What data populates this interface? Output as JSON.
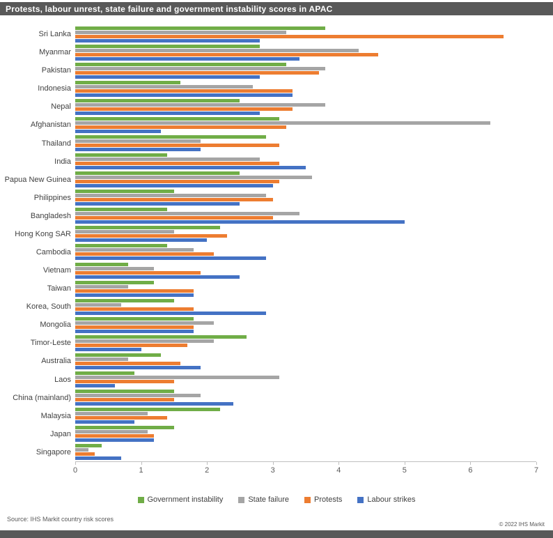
{
  "header": {
    "title": "Protests, labour unrest, state failure and government instability scores in APAC"
  },
  "chart_data": {
    "type": "bar",
    "orientation": "horizontal",
    "title": "Protests, labour unrest, state failure and government instability scores in APAC",
    "xlabel": "",
    "ylabel": "",
    "xlim": [
      0,
      7
    ],
    "xticks": [
      0,
      1,
      2,
      3,
      4,
      5,
      6,
      7
    ],
    "grid": false,
    "legend_position": "bottom",
    "categories": [
      "Sri Lanka",
      "Myanmar",
      "Pakistan",
      "Indonesia",
      "Nepal",
      "Afghanistan",
      "Thailand",
      "India",
      "Papua New Guinea",
      "Philippines",
      "Bangladesh",
      "Hong Kong SAR",
      "Cambodia",
      "Vietnam",
      "Taiwan",
      "Korea, South",
      "Mongolia",
      "Timor-Leste",
      "Australia",
      "Laos",
      "China (mainland)",
      "Malaysia",
      "Japan",
      "Singapore"
    ],
    "series": [
      {
        "key": "government-instability",
        "name": "Government instability",
        "color": "#70AD47",
        "values": [
          3.8,
          2.8,
          3.2,
          1.6,
          2.5,
          3.1,
          2.9,
          1.4,
          2.5,
          1.5,
          1.4,
          2.2,
          1.4,
          0.8,
          1.2,
          1.5,
          1.8,
          2.6,
          1.3,
          0.9,
          1.5,
          2.2,
          1.5,
          0.4
        ]
      },
      {
        "key": "state-failure",
        "name": "State failure",
        "color": "#A5A5A5",
        "values": [
          3.2,
          4.3,
          3.8,
          2.7,
          3.8,
          6.3,
          1.9,
          2.8,
          3.6,
          2.9,
          3.4,
          1.5,
          1.8,
          1.2,
          0.8,
          0.7,
          2.1,
          2.1,
          0.8,
          3.1,
          1.9,
          1.1,
          1.1,
          0.2
        ]
      },
      {
        "key": "protests",
        "name": "Protests",
        "color": "#ED7D31",
        "values": [
          6.5,
          4.6,
          3.7,
          3.3,
          3.3,
          3.2,
          3.1,
          3.1,
          3.1,
          3.0,
          3.0,
          2.3,
          2.1,
          1.9,
          1.8,
          1.8,
          1.8,
          1.7,
          1.6,
          1.5,
          1.5,
          1.4,
          1.2,
          0.3
        ]
      },
      {
        "key": "labour-strikes",
        "name": "Labour strikes",
        "color": "#4472C4",
        "values": [
          2.8,
          3.4,
          2.8,
          3.3,
          2.8,
          1.3,
          1.9,
          3.5,
          3.0,
          2.5,
          5.0,
          2.0,
          2.9,
          2.5,
          1.8,
          2.9,
          1.8,
          1.0,
          1.9,
          0.6,
          2.4,
          0.9,
          1.2,
          0.7
        ]
      }
    ]
  },
  "footer": {
    "source": "Source: IHS Markit country risk scores",
    "copyright": "© 2022 IHS Markit"
  }
}
